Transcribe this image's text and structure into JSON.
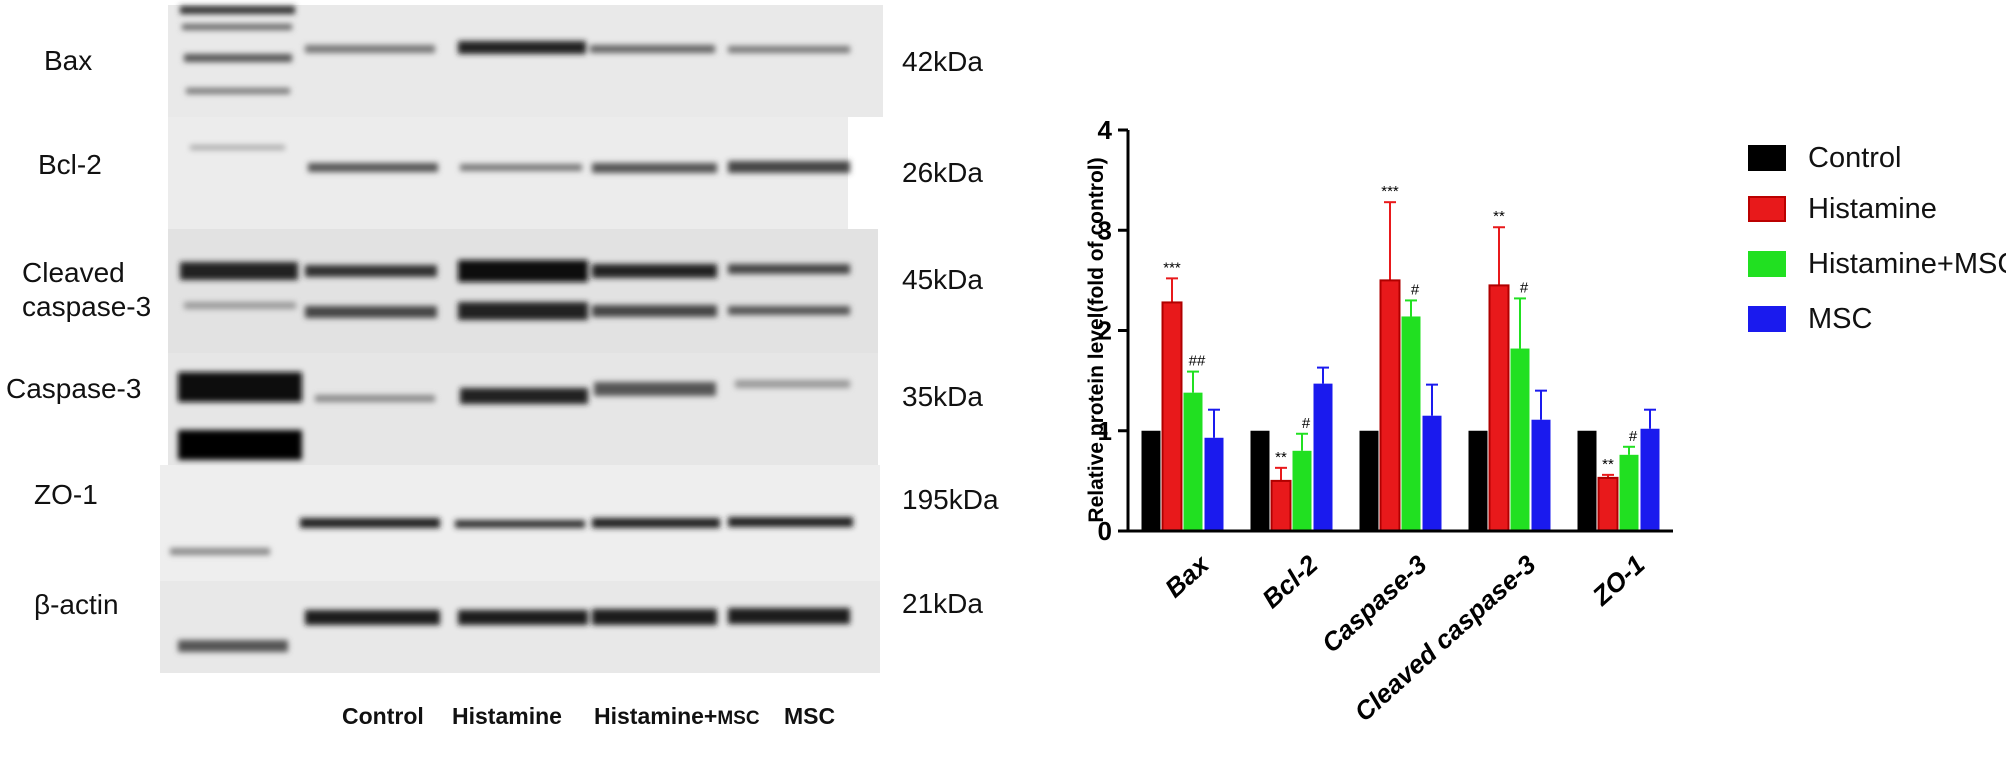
{
  "blot": {
    "labels": [
      "Bax",
      "Bcl-2",
      "Cleaved",
      "caspase-3",
      "Caspase-3",
      "ZO-1",
      "β-actin"
    ],
    "kda": [
      "42kDa",
      "26kDa",
      "45kDa",
      "35kDa",
      "195kDa",
      "21kDa"
    ],
    "lanes": [
      "Control",
      "Histamine",
      "Histamine+",
      "MSC",
      "MSC"
    ]
  },
  "chart_data": {
    "type": "bar",
    "categories": [
      "Bax",
      "Bcl-2",
      "Caspase-3",
      "Cleaved caspase-3",
      "ZO-1"
    ],
    "ylabel": "Relative protein level(fold of control)",
    "ylim": [
      0,
      4
    ],
    "yticks": [
      "0",
      "1",
      "2",
      "3",
      "4"
    ],
    "series": [
      {
        "name": "Control",
        "color": "#000000",
        "values": [
          1.0,
          1.0,
          1.0,
          1.0,
          1.0
        ],
        "errors": [
          0,
          0,
          0,
          0,
          0
        ]
      },
      {
        "name": "Histamine",
        "color": "#e8191b",
        "values": [
          2.28,
          0.5,
          2.5,
          2.45,
          0.53
        ],
        "errors": [
          0.24,
          0.13,
          0.78,
          0.58,
          0.03
        ]
      },
      {
        "name": "Histamine+MSC",
        "color": "#21e021",
        "values": [
          1.38,
          0.8,
          2.14,
          1.82,
          0.76
        ],
        "errors": [
          0.21,
          0.17,
          0.16,
          0.5,
          0.08
        ]
      },
      {
        "name": "MSC",
        "color": "#1a1aee",
        "values": [
          0.93,
          1.47,
          1.15,
          1.11,
          1.02
        ],
        "errors": [
          0.28,
          0.16,
          0.31,
          0.29,
          0.19
        ]
      }
    ],
    "annotations": [
      {
        "category": "Bax",
        "series": "Histamine",
        "text": "***"
      },
      {
        "category": "Bax",
        "series": "Histamine+MSC",
        "text": "##"
      },
      {
        "category": "Bcl-2",
        "series": "Histamine",
        "text": "**"
      },
      {
        "category": "Bcl-2",
        "series": "Histamine+MSC",
        "text": "#"
      },
      {
        "category": "Caspase-3",
        "series": "Histamine",
        "text": "***"
      },
      {
        "category": "Caspase-3",
        "series": "Histamine+MSC",
        "text": "#"
      },
      {
        "category": "Cleaved caspase-3",
        "series": "Histamine",
        "text": "**"
      },
      {
        "category": "Cleaved caspase-3",
        "series": "Histamine+MSC",
        "text": "#"
      },
      {
        "category": "ZO-1",
        "series": "Histamine",
        "text": "**"
      },
      {
        "category": "ZO-1",
        "series": "Histamine+MSC",
        "text": "#"
      }
    ],
    "legend_position": "right"
  }
}
